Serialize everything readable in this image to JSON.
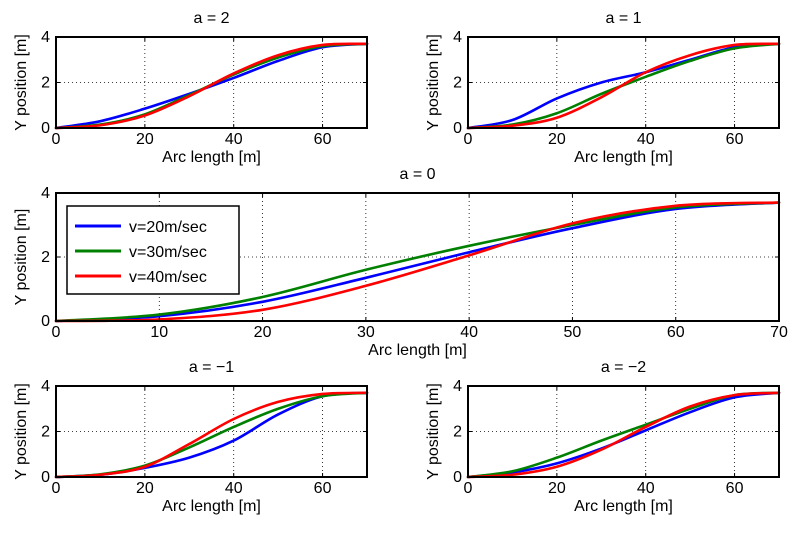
{
  "chart_data": [
    {
      "type": "line",
      "title": "a = 2",
      "xlabel": "Arc length [m]",
      "ylabel": "Y position [m]",
      "xlim": [
        0,
        70
      ],
      "ylim": [
        0,
        4
      ],
      "xticks": [
        0,
        20,
        40,
        60
      ],
      "yticks": [
        0,
        2,
        4
      ],
      "grid": true,
      "series": [
        {
          "name": "v=20m/sec",
          "color": "#0000ff",
          "x": [
            0,
            10,
            20,
            30,
            40,
            50,
            60,
            70
          ],
          "y": [
            0,
            0.3,
            0.85,
            1.5,
            2.2,
            2.95,
            3.55,
            3.7
          ]
        },
        {
          "name": "v=30m/sec",
          "color": "#008000",
          "x": [
            0,
            10,
            20,
            30,
            40,
            50,
            60,
            70
          ],
          "y": [
            0,
            0.15,
            0.6,
            1.45,
            2.35,
            3.1,
            3.6,
            3.7
          ]
        },
        {
          "name": "v=40m/sec",
          "color": "#ff0000",
          "x": [
            0,
            10,
            20,
            30,
            40,
            50,
            60,
            70
          ],
          "y": [
            0,
            0.12,
            0.55,
            1.4,
            2.4,
            3.2,
            3.65,
            3.7
          ]
        }
      ]
    },
    {
      "type": "line",
      "title": "a = 1",
      "xlabel": "Arc length [m]",
      "ylabel": "Y position [m]",
      "xlim": [
        0,
        70
      ],
      "ylim": [
        0,
        4
      ],
      "xticks": [
        0,
        20,
        40,
        60
      ],
      "yticks": [
        0,
        2,
        4
      ],
      "grid": true,
      "series": [
        {
          "name": "v=20m/sec",
          "color": "#0000ff",
          "x": [
            0,
            10,
            20,
            30,
            40,
            50,
            60,
            70
          ],
          "y": [
            0,
            0.35,
            1.3,
            2.0,
            2.45,
            3.0,
            3.55,
            3.7
          ]
        },
        {
          "name": "v=30m/sec",
          "color": "#008000",
          "x": [
            0,
            10,
            20,
            30,
            40,
            50,
            60,
            70
          ],
          "y": [
            0,
            0.15,
            0.65,
            1.5,
            2.25,
            2.95,
            3.5,
            3.7
          ]
        },
        {
          "name": "v=40m/sec",
          "color": "#ff0000",
          "x": [
            0,
            10,
            20,
            30,
            40,
            50,
            60,
            70
          ],
          "y": [
            0,
            0.1,
            0.45,
            1.35,
            2.45,
            3.2,
            3.65,
            3.7
          ]
        }
      ]
    },
    {
      "type": "line",
      "title": "a = 0",
      "xlabel": "Arc length [m]",
      "ylabel": "Y position [m]",
      "xlim": [
        0,
        70
      ],
      "ylim": [
        0,
        4
      ],
      "xticks": [
        0,
        10,
        20,
        30,
        40,
        50,
        60,
        70
      ],
      "yticks": [
        0,
        2,
        4
      ],
      "grid": true,
      "legend": "top-left",
      "series": [
        {
          "name": "v=20m/sec",
          "color": "#0000ff",
          "x": [
            0,
            10,
            20,
            30,
            40,
            50,
            60,
            70
          ],
          "y": [
            0,
            0.15,
            0.6,
            1.35,
            2.15,
            2.9,
            3.5,
            3.7
          ]
        },
        {
          "name": "v=30m/sec",
          "color": "#008000",
          "x": [
            0,
            10,
            20,
            30,
            40,
            50,
            60,
            70
          ],
          "y": [
            0,
            0.2,
            0.75,
            1.6,
            2.35,
            3.0,
            3.55,
            3.7
          ]
        },
        {
          "name": "v=40m/sec",
          "color": "#ff0000",
          "x": [
            0,
            10,
            20,
            30,
            40,
            50,
            60,
            70
          ],
          "y": [
            0,
            0.05,
            0.35,
            1.1,
            2.05,
            3.05,
            3.6,
            3.7
          ]
        }
      ]
    },
    {
      "type": "line",
      "title": "a = −1",
      "xlabel": "Arc length [m]",
      "ylabel": "Y position [m]",
      "xlim": [
        0,
        70
      ],
      "ylim": [
        0,
        4
      ],
      "xticks": [
        0,
        20,
        40,
        60
      ],
      "yticks": [
        0,
        2,
        4
      ],
      "grid": true,
      "series": [
        {
          "name": "v=20m/sec",
          "color": "#0000ff",
          "x": [
            0,
            10,
            20,
            30,
            40,
            50,
            60,
            70
          ],
          "y": [
            0,
            0.1,
            0.4,
            0.85,
            1.6,
            2.75,
            3.55,
            3.7
          ]
        },
        {
          "name": "v=30m/sec",
          "color": "#008000",
          "x": [
            0,
            10,
            20,
            30,
            40,
            50,
            60,
            70
          ],
          "y": [
            0,
            0.12,
            0.5,
            1.3,
            2.2,
            3.0,
            3.55,
            3.7
          ]
        },
        {
          "name": "v=40m/sec",
          "color": "#ff0000",
          "x": [
            0,
            10,
            20,
            30,
            40,
            50,
            60,
            70
          ],
          "y": [
            0,
            0.1,
            0.45,
            1.45,
            2.55,
            3.3,
            3.65,
            3.7
          ]
        }
      ]
    },
    {
      "type": "line",
      "title": "a = −2",
      "xlabel": "Arc length [m]",
      "ylabel": "Y position [m]",
      "xlim": [
        0,
        70
      ],
      "ylim": [
        0,
        4
      ],
      "xticks": [
        0,
        20,
        40,
        60
      ],
      "yticks": [
        0,
        2,
        4
      ],
      "grid": true,
      "series": [
        {
          "name": "v=20m/sec",
          "color": "#0000ff",
          "x": [
            0,
            10,
            20,
            30,
            40,
            50,
            60,
            70
          ],
          "y": [
            0,
            0.2,
            0.6,
            1.25,
            2.05,
            2.85,
            3.5,
            3.7
          ]
        },
        {
          "name": "v=30m/sec",
          "color": "#008000",
          "x": [
            0,
            10,
            20,
            30,
            40,
            50,
            60,
            70
          ],
          "y": [
            0,
            0.25,
            0.85,
            1.6,
            2.3,
            3.0,
            3.6,
            3.7
          ]
        },
        {
          "name": "v=40m/sec",
          "color": "#ff0000",
          "x": [
            0,
            10,
            20,
            30,
            40,
            50,
            60,
            70
          ],
          "y": [
            0,
            0.1,
            0.45,
            1.2,
            2.2,
            3.1,
            3.6,
            3.7
          ]
        }
      ]
    }
  ]
}
